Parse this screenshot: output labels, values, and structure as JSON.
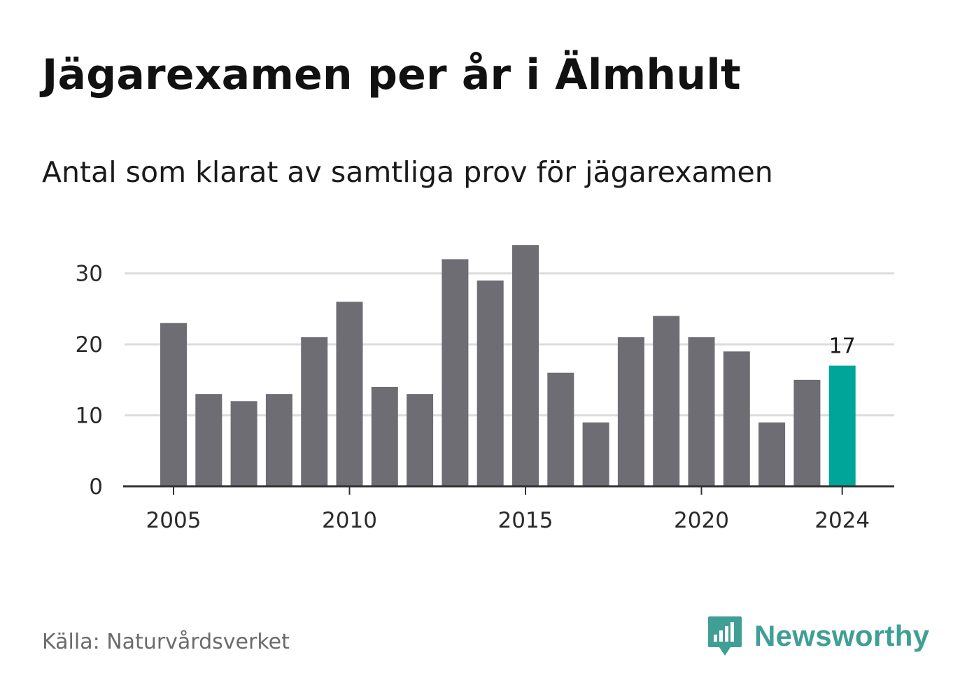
{
  "title": "Jägarexamen per år i Älmhult",
  "subtitle": "Antal som klarat av samtliga prov för jägarexamen",
  "source": "Källa: Naturvårdsverket",
  "brand": {
    "name": "Newsworthy",
    "icon": "newsworthy-logo-icon",
    "color": "#3f9f95"
  },
  "colors": {
    "bar": "#6e6d73",
    "highlight": "#00a59a",
    "grid": "#dcdcdc",
    "axis": "#333333"
  },
  "chart_data": {
    "type": "bar",
    "title": "Jägarexamen per år i Älmhult",
    "subtitle": "Antal som klarat av samtliga prov för jägarexamen",
    "xlabel": "",
    "ylabel": "",
    "categories": [
      2005,
      2006,
      2007,
      2008,
      2009,
      2010,
      2011,
      2012,
      2013,
      2014,
      2015,
      2016,
      2017,
      2018,
      2019,
      2020,
      2021,
      2022,
      2023,
      2024
    ],
    "values": [
      23,
      13,
      12,
      13,
      21,
      26,
      14,
      13,
      32,
      29,
      34,
      16,
      9,
      21,
      24,
      21,
      19,
      9,
      15,
      17
    ],
    "ylim": [
      0,
      35
    ],
    "yticks": [
      0,
      10,
      20,
      30
    ],
    "xticks": [
      2005,
      2010,
      2015,
      2020,
      2024
    ],
    "grid": true,
    "highlight": {
      "category": 2024,
      "label": "17"
    }
  }
}
